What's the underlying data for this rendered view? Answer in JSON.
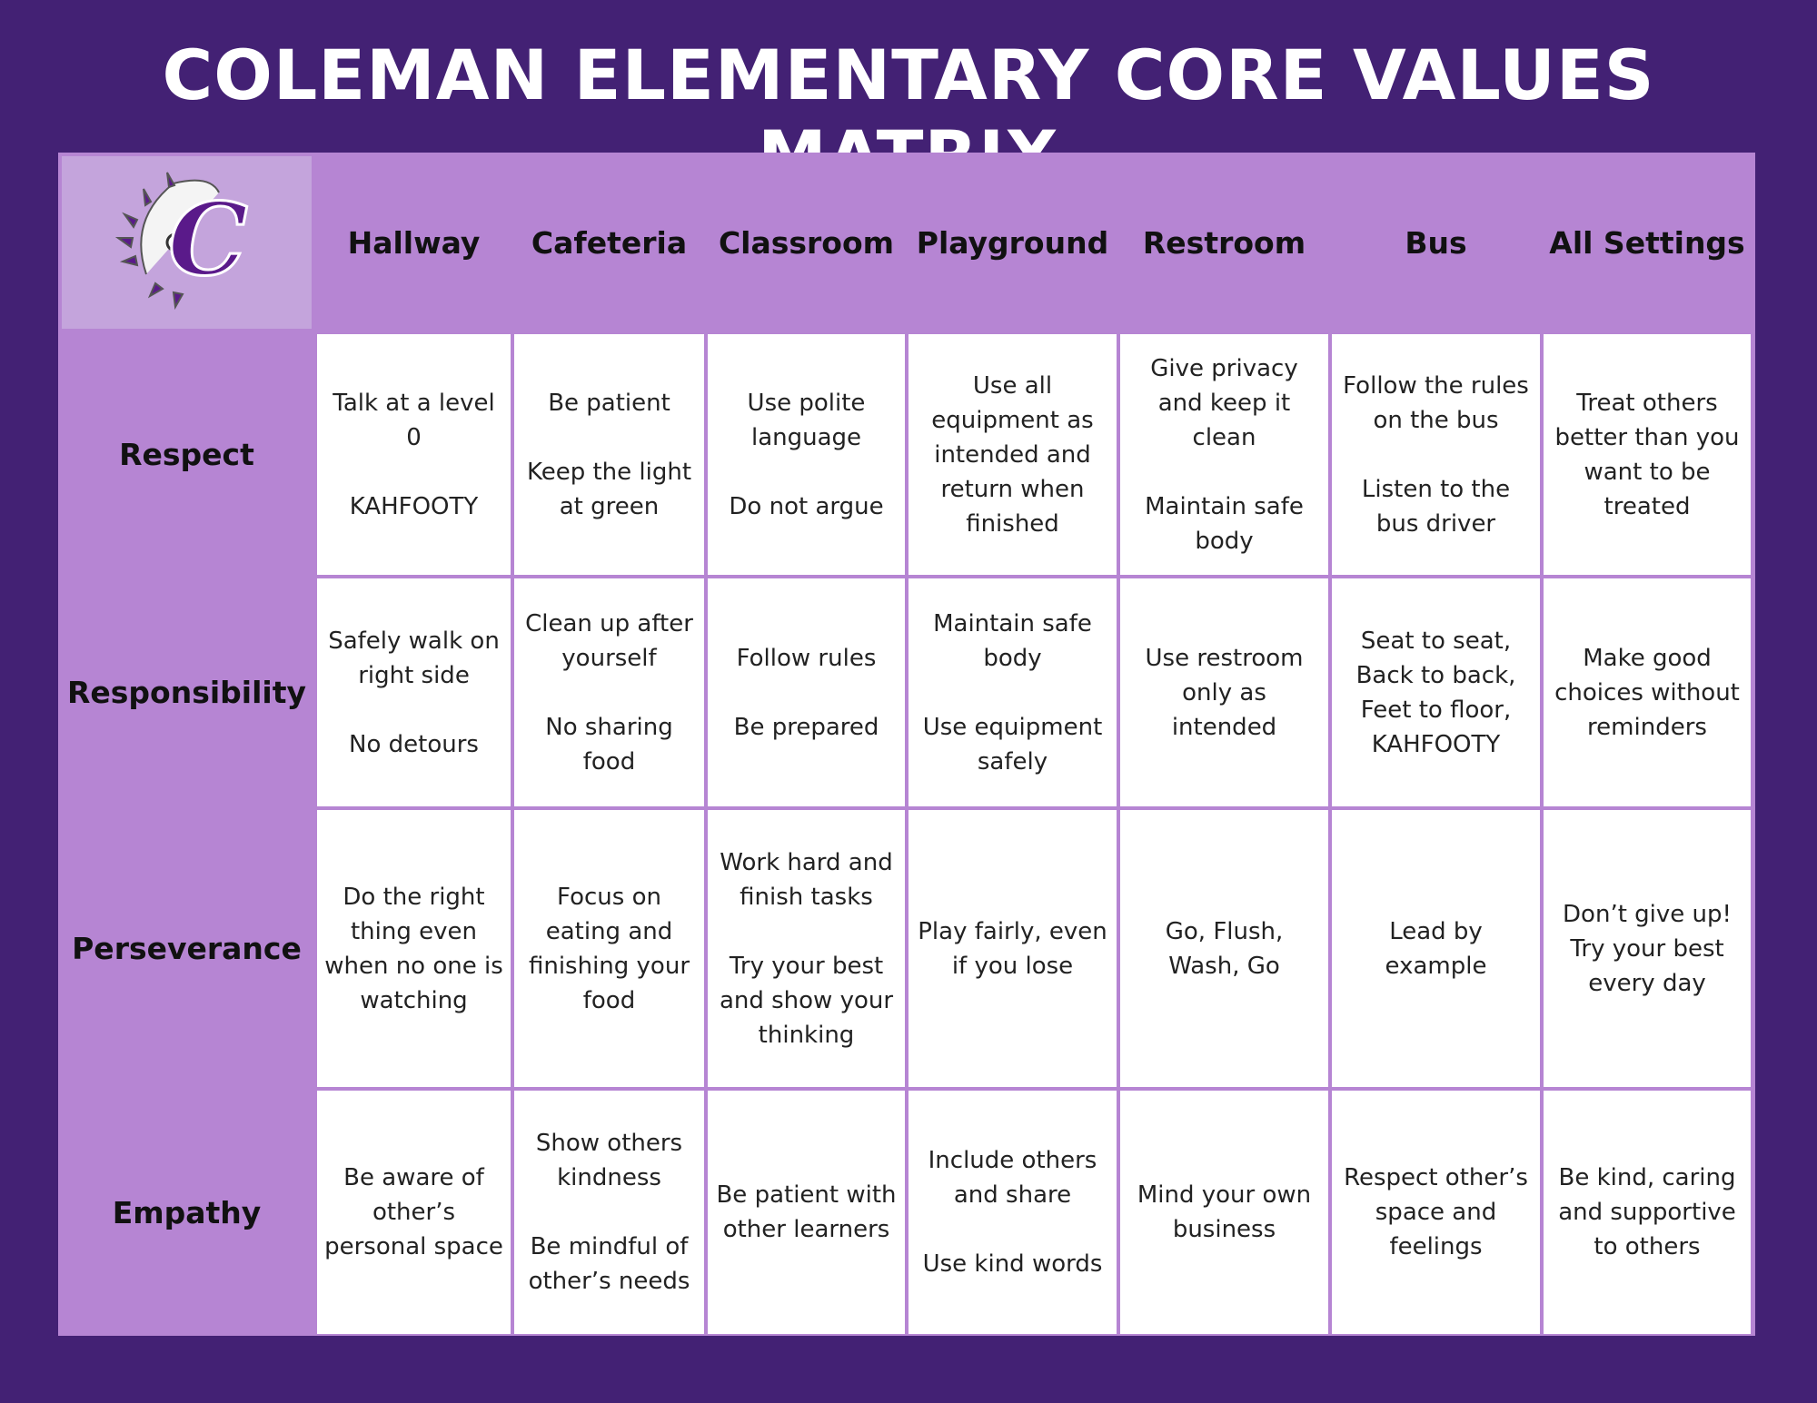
{
  "header": {
    "title": "COLEMAN ELEMENTARY CORE VALUES MATRIX"
  },
  "table": {
    "columns": [
      "Hallway",
      "Cafeteria",
      "Classroom",
      "Playground",
      "Restroom",
      "Bus",
      "All Settings"
    ],
    "rows": [
      {
        "label": "Respect",
        "cells": [
          [
            "Talk at a level 0",
            "KAHFOOTY"
          ],
          [
            "Be patient",
            "Keep the light at green"
          ],
          [
            "Use polite language",
            "Do not argue"
          ],
          [
            "Use all equipment as intended and return when finished"
          ],
          [
            "Give privacy and keep it clean",
            "Maintain safe body"
          ],
          [
            "Follow the rules on the bus",
            "Listen to the bus driver"
          ],
          [
            "Treat others better than you want to be treated"
          ]
        ]
      },
      {
        "label": "Responsibility",
        "cells": [
          [
            "Safely walk on right side",
            "No detours"
          ],
          [
            "Clean up after yourself",
            "No sharing food"
          ],
          [
            "Follow rules",
            "Be prepared"
          ],
          [
            "Maintain safe body",
            "Use equipment safely"
          ],
          [
            "Use restroom only as intended"
          ],
          [
            "Seat to seat, Back to back, Feet to floor, KAHFOOTY"
          ],
          [
            "Make good choices without reminders"
          ]
        ]
      },
      {
        "label": "Perseverance",
        "cells": [
          [
            "Do the right thing even when no one is watching"
          ],
          [
            "Focus on eating and finishing your food"
          ],
          [
            "Work hard and finish tasks",
            "Try your best and show your thinking"
          ],
          [
            "Play fairly, even if you lose"
          ],
          [
            "Go, Flush, Wash, Go"
          ],
          [
            "Lead by example"
          ],
          [
            "Don’t give up! Try your best every day"
          ]
        ]
      },
      {
        "label": "Empathy",
        "cells": [
          [
            "Be aware of other’s personal space"
          ],
          [
            "Show others kindness",
            "Be mindful of other’s needs"
          ],
          [
            "Be patient with other learners"
          ],
          [
            "Include others and share",
            "Use kind words"
          ],
          [
            "Mind your own business"
          ],
          [
            "Respect other’s space and feelings"
          ],
          [
            "Be kind, caring and supportive to others"
          ]
        ]
      }
    ]
  }
}
